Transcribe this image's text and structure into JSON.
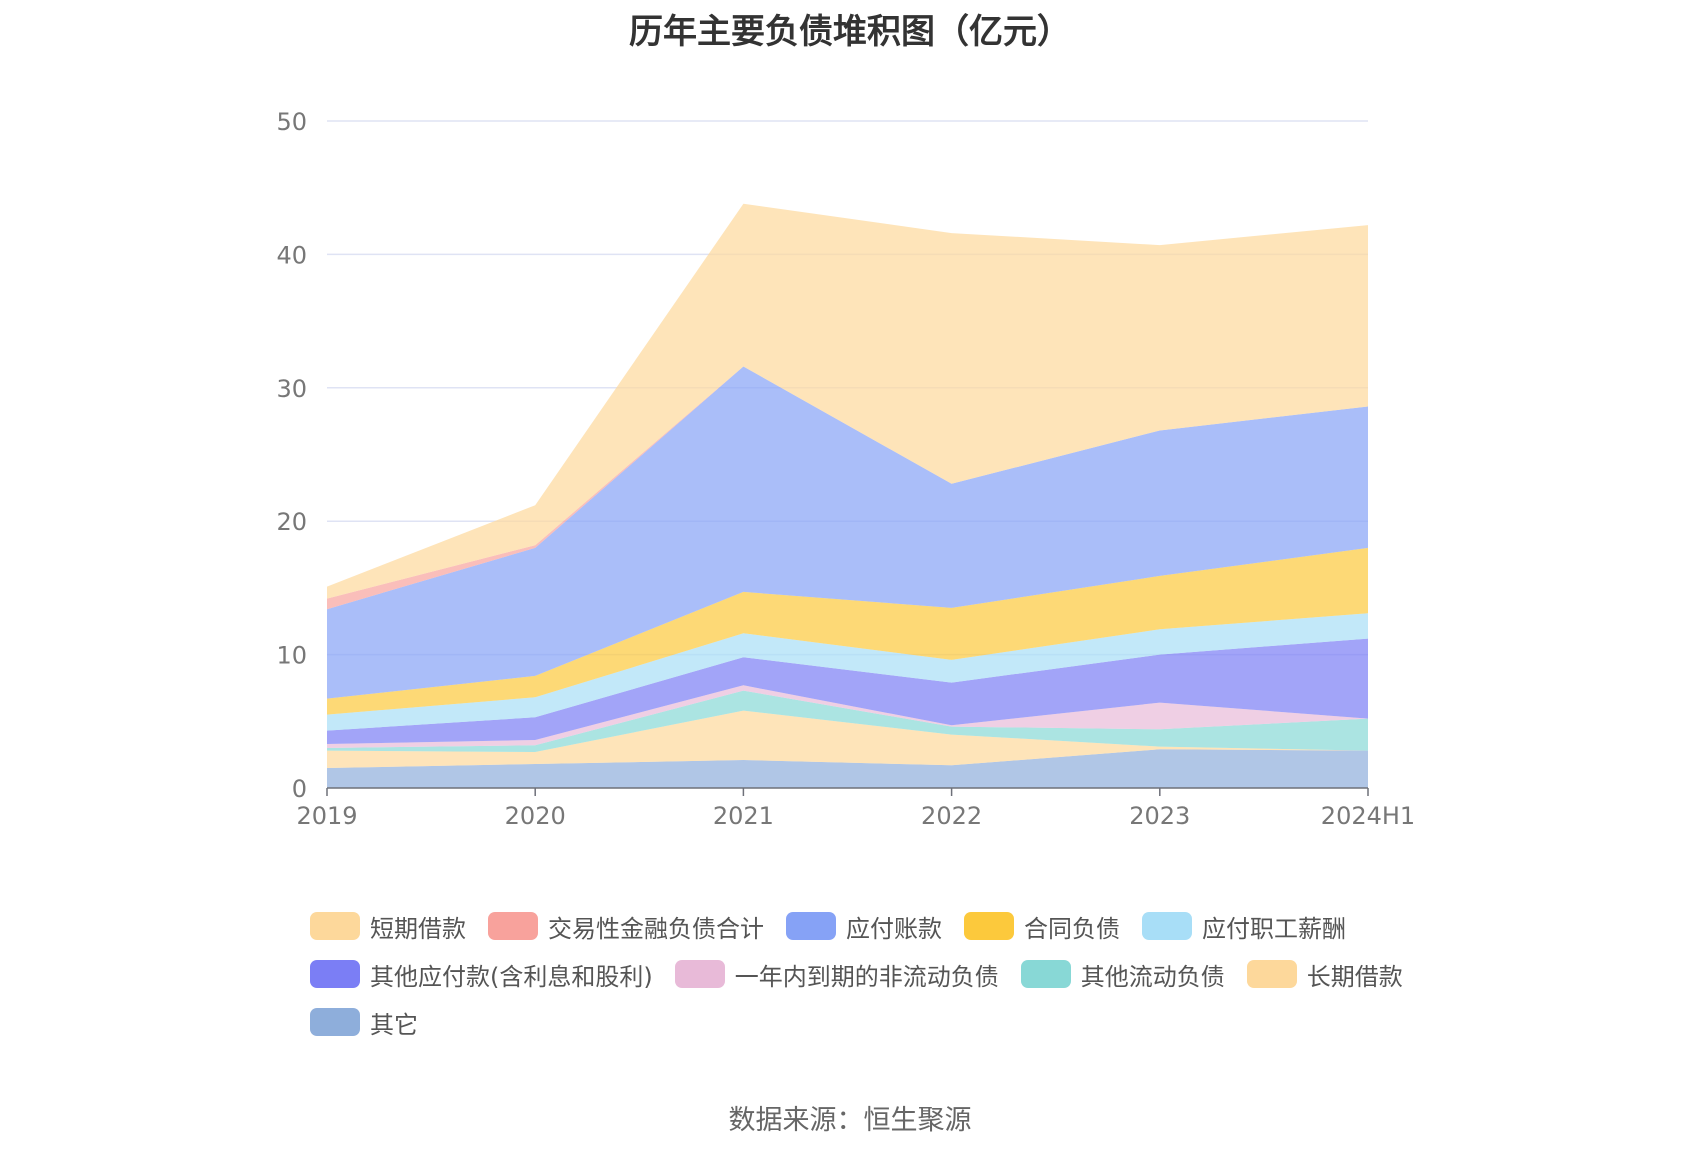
{
  "title": "历年主要负债堆积图（亿元）",
  "source": "数据来源：恒生聚源",
  "chart_data": {
    "type": "area",
    "stacked": true,
    "title": "历年主要负债堆积图（亿元）",
    "categories": [
      "2019",
      "2020",
      "2021",
      "2022",
      "2023",
      "2024H1"
    ],
    "ylim": [
      0,
      50
    ],
    "yticks": [
      0,
      10,
      20,
      30,
      40,
      50
    ],
    "grid": true,
    "legend_position": "bottom",
    "series": [
      {
        "name": "其它",
        "color": "#8eaedb",
        "values": [
          1.5,
          1.8,
          2.1,
          1.7,
          2.9,
          2.8
        ]
      },
      {
        "name": "长期借款",
        "color": "#fdd89b",
        "values": [
          1.3,
          0.9,
          3.7,
          2.3,
          0.2,
          0.0
        ]
      },
      {
        "name": "其他流动负债",
        "color": "#88d8d6",
        "values": [
          0.2,
          0.5,
          1.5,
          0.6,
          1.3,
          2.4
        ]
      },
      {
        "name": "一年内到期的非流动负债",
        "color": "#e8bad8",
        "values": [
          0.3,
          0.4,
          0.4,
          0.1,
          2.0,
          0.0
        ]
      },
      {
        "name": "其他应付款(含利息和股利)",
        "color": "#7b7ef5",
        "values": [
          1.0,
          1.7,
          2.1,
          3.2,
          3.6,
          6.0
        ]
      },
      {
        "name": "应付职工薪酬",
        "color": "#a8def7",
        "values": [
          1.2,
          1.5,
          1.8,
          1.7,
          1.9,
          1.9
        ]
      },
      {
        "name": "合同负债",
        "color": "#fcc93c",
        "values": [
          1.2,
          1.6,
          3.1,
          3.9,
          4.0,
          4.9
        ]
      },
      {
        "name": "应付账款",
        "color": "#86a2f6",
        "values": [
          6.7,
          9.6,
          16.9,
          9.3,
          10.9,
          10.6
        ]
      },
      {
        "name": "交易性金融负债合计",
        "color": "#f8a29c",
        "values": [
          0.8,
          0.2,
          0.0,
          0.0,
          0.0,
          0.0
        ]
      },
      {
        "name": "短期借款",
        "color": "#fdd89b",
        "values": [
          0.9,
          3.0,
          12.2,
          18.8,
          13.9,
          13.6
        ]
      }
    ]
  },
  "legend": {
    "rows": [
      [
        {
          "label": "短期借款",
          "color": "#fdd89b"
        },
        {
          "label": "交易性金融负债合计",
          "color": "#f8a29c"
        },
        {
          "label": "应付账款",
          "color": "#86a2f6"
        },
        {
          "label": "合同负债",
          "color": "#fcc93c"
        },
        {
          "label": "应付职工薪酬",
          "color": "#a8def7"
        }
      ],
      [
        {
          "label": "其他应付款(含利息和股利)",
          "color": "#7b7ef5"
        },
        {
          "label": "一年内到期的非流动负债",
          "color": "#e8bad8"
        },
        {
          "label": "其他流动负债",
          "color": "#88d8d6"
        },
        {
          "label": "长期借款",
          "color": "#fdd89b"
        }
      ],
      [
        {
          "label": "其它",
          "color": "#8eaedb"
        }
      ]
    ]
  }
}
